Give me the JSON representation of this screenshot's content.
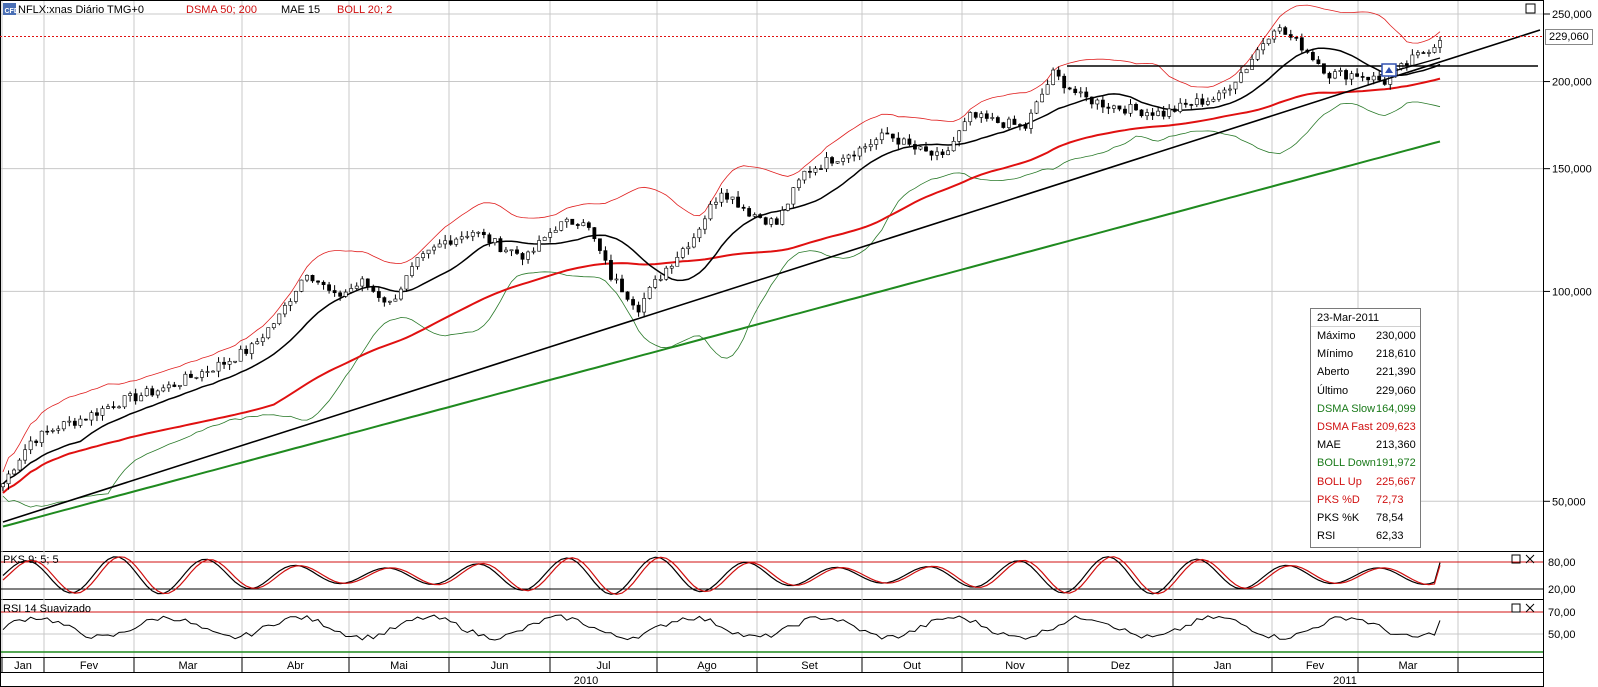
{
  "header": {
    "symbol": "NFLX:xnas Diário TMG+0",
    "indicators": [
      "DSMA 50; 200",
      "MAE 15",
      "BOLL 20; 2"
    ]
  },
  "sub_panels": {
    "pks_label": "PKS 9; 5; 5",
    "rsi_label": "RSI 14 Suavizado"
  },
  "current_price_label": "229,060",
  "info_box": {
    "date": "23-Mar-2011",
    "rows": [
      {
        "label": "Máximo",
        "value": "230,000",
        "color": "#000000"
      },
      {
        "label": "Mínimo",
        "value": "218,610",
        "color": "#000000"
      },
      {
        "label": "Aberto",
        "value": "221,390",
        "color": "#000000"
      },
      {
        "label": "Último",
        "value": "229,060",
        "color": "#000000"
      },
      {
        "label": "DSMA Slow",
        "value": "164,099",
        "color": "#1a7a1a"
      },
      {
        "label": "DSMA Fast",
        "value": "209,623",
        "color": "#d01010"
      },
      {
        "label": "MAE",
        "value": "213,360",
        "color": "#000000"
      },
      {
        "label": "BOLL Down",
        "value": "191,972",
        "color": "#1a7a1a"
      },
      {
        "label": "BOLL Up",
        "value": "225,667",
        "color": "#d01010"
      },
      {
        "label": "PKS %D",
        "value": "72,73",
        "color": "#d01010"
      },
      {
        "label": "PKS %K",
        "value": "78,54",
        "color": "#000000"
      },
      {
        "label": "RSI",
        "value": "62,33",
        "color": "#000000"
      }
    ]
  },
  "colors": {
    "candle_up": "#ffffff",
    "candle_down": "#000000",
    "dsma_fast": "#e01010",
    "dsma_slow": "#1f8a1f",
    "boll_up": "#e02020",
    "boll_down": "#2a7a2a",
    "mae": "#000000",
    "grid": "#c8c8c8"
  },
  "chart_data": {
    "type": "line",
    "log_scale": true,
    "ylim": [
      44000,
      255000
    ],
    "y_ticks": [
      {
        "value": 250000,
        "label": "250,000"
      },
      {
        "value": 200000,
        "label": "200,000"
      },
      {
        "value": 150000,
        "label": "150,000"
      },
      {
        "value": 100000,
        "label": "100,000"
      },
      {
        "value": 50000,
        "label": "50,000"
      }
    ],
    "x_months": [
      "Jan",
      "Fev",
      "Mar",
      "Abr",
      "Mai",
      "Jun",
      "Jul",
      "Ago",
      "Set",
      "Out",
      "Nov",
      "Dez",
      "Jan",
      "Fev",
      "Mar"
    ],
    "x_years": [
      "2010",
      "2011"
    ],
    "close_weekly": [
      53000,
      61000,
      64000,
      66000,
      69000,
      71000,
      73000,
      76000,
      79000,
      83000,
      92000,
      107000,
      98000,
      103000,
      96000,
      110000,
      118000,
      122000,
      116000,
      112000,
      124000,
      127000,
      105000,
      95000,
      108000,
      120000,
      140000,
      130000,
      125000,
      148000,
      155000,
      160000,
      168000,
      160000,
      155000,
      178000,
      175000,
      172000,
      205000,
      190000,
      185000,
      182000,
      180000,
      186000,
      190000,
      210000,
      240000,
      225000,
      205000,
      205000,
      200000,
      215000,
      229060
    ],
    "dsma_fast_end": 209623,
    "dsma_slow_end": 164099,
    "mae_end": 213360,
    "boll_up_end": 225667,
    "boll_down_end": 191972,
    "pks": {
      "ylim": [
        0,
        100
      ],
      "levels": [
        {
          "value": 80,
          "label": "80,00"
        },
        {
          "value": 20,
          "label": "20,00"
        }
      ],
      "k_end": 78.54,
      "d_end": 72.73
    },
    "rsi": {
      "ylim": [
        30,
        80
      ],
      "levels": [
        {
          "value": 70,
          "label": "70,00"
        },
        {
          "value": 50,
          "label": "50,00"
        }
      ],
      "end": 62.33
    }
  }
}
